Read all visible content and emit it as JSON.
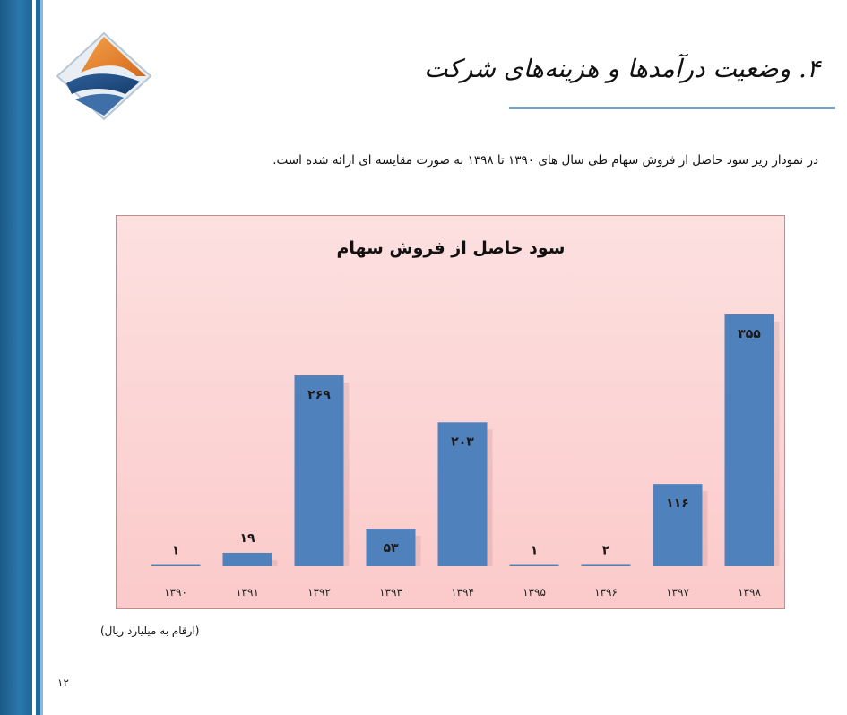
{
  "heading": "۴. وضعیت درآمدها و هزینه‌های شرکت",
  "intro": "در نمودار زیر سود حاصل از فروش سهام طی سال های ۱۳۹۰ تا ۱۳۹۸ به صورت مقایسه ای ارائه شده است.",
  "unit_note": "(ارقام به میلیارد ریال)",
  "page_number": "۱۲",
  "colors": {
    "bar": "#4f81bd",
    "sidebar": "#2b78ad",
    "chart_bg": "#fbcaca",
    "rule": "#7da3c2"
  },
  "chart_data": {
    "type": "bar",
    "title": "سود حاصل از فروش سهام",
    "categories": [
      "۱۳۹۰",
      "۱۳۹۱",
      "۱۳۹۲",
      "۱۳۹۳",
      "۱۳۹۴",
      "۱۳۹۵",
      "۱۳۹۶",
      "۱۳۹۷",
      "۱۳۹۸"
    ],
    "values": [
      1,
      19,
      269,
      53,
      203,
      1,
      2,
      116,
      355
    ],
    "value_labels": [
      "۱",
      "۱۹",
      "۲۶۹",
      "۵۳",
      "۲۰۳",
      "۱",
      "۲",
      "۱۱۶",
      "۳۵۵"
    ],
    "xlabel": "",
    "ylabel": "",
    "ylim": [
      0,
      360
    ],
    "grid": false,
    "legend": "none"
  }
}
